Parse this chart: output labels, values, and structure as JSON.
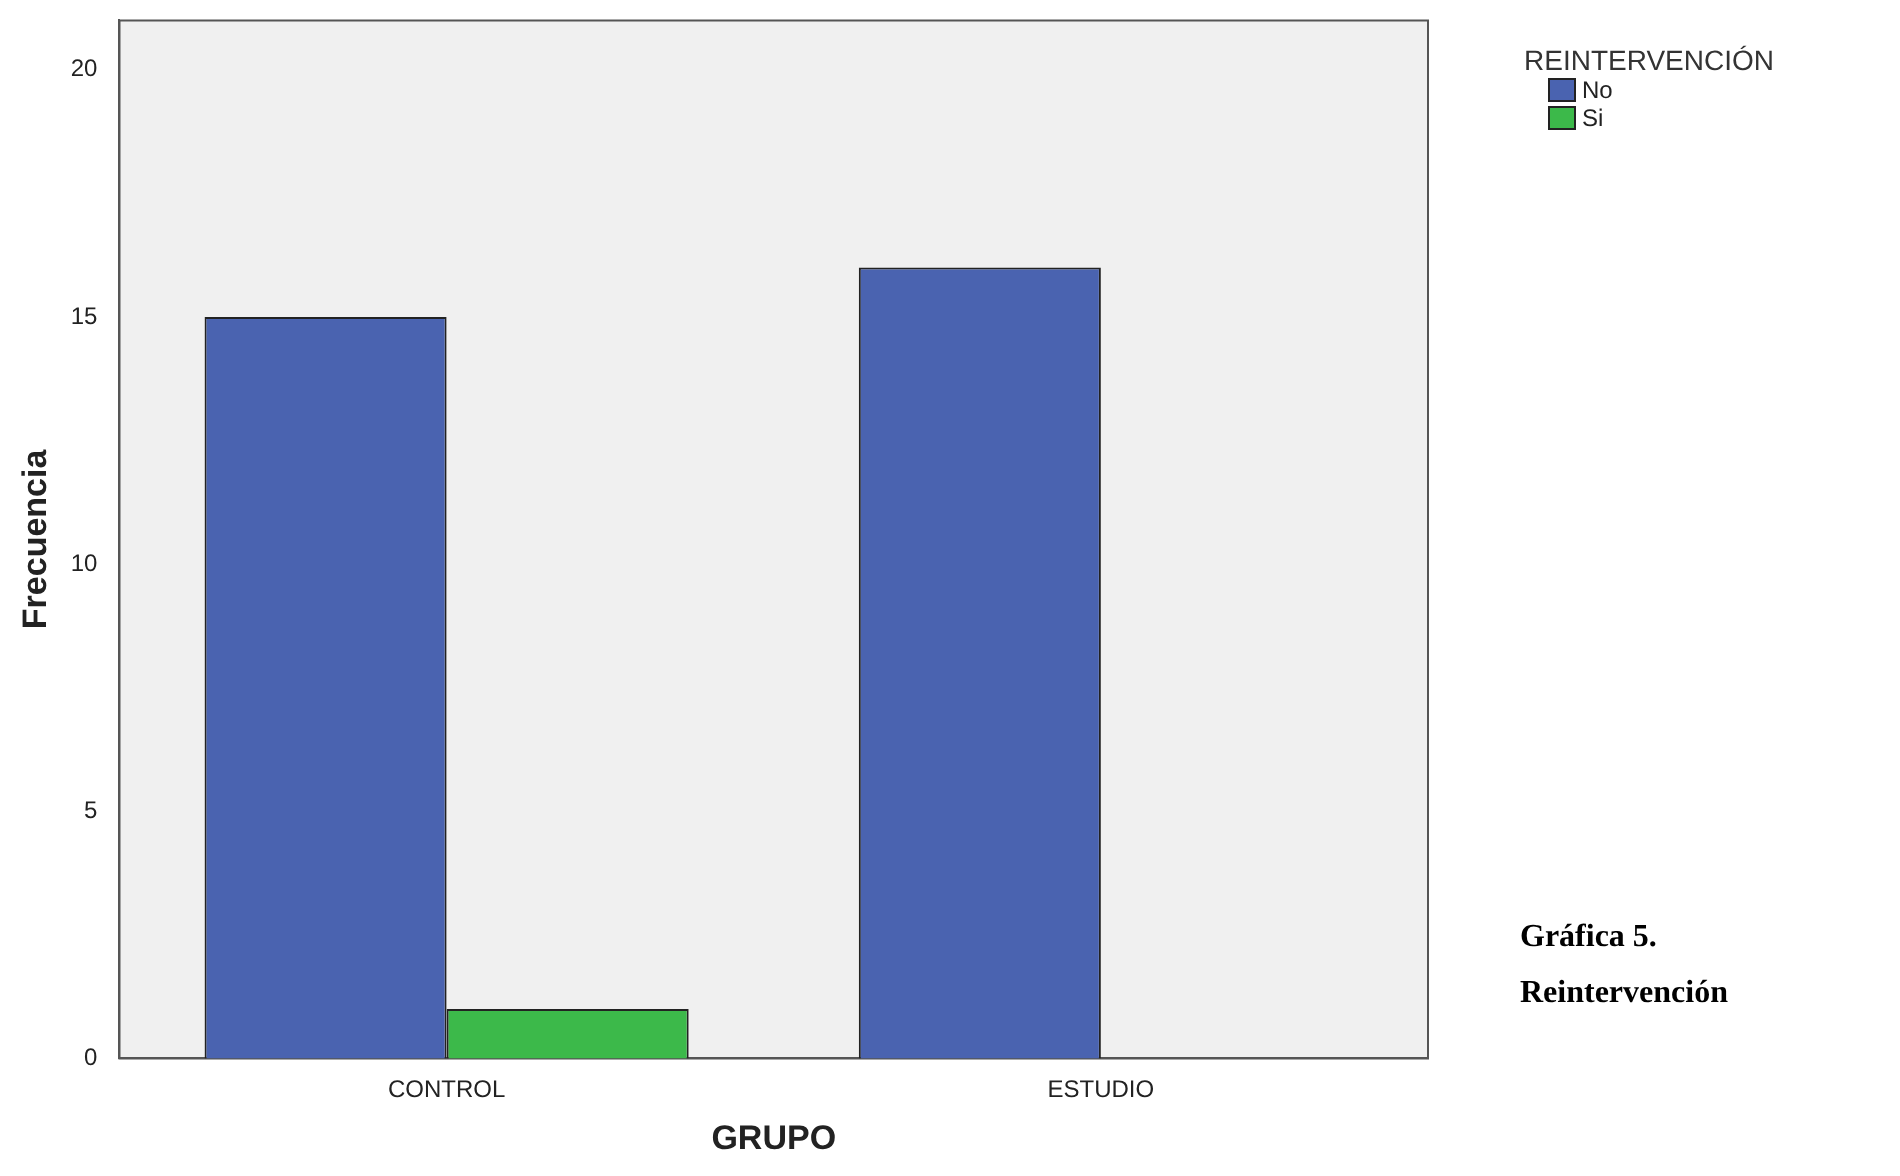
{
  "chart_data": {
    "type": "bar",
    "xlabel": "GRUPO",
    "ylabel": "Frecuencia",
    "legend_title": "REINTERVENCIÓN",
    "categories": [
      "CONTROL",
      "ESTUDIO"
    ],
    "series": [
      {
        "name": "No",
        "color": "#4a63b0",
        "values": [
          15,
          16
        ]
      },
      {
        "name": "Si",
        "color": "#3cb94a",
        "values": [
          1,
          0
        ]
      }
    ],
    "ylim": [
      0,
      21
    ],
    "yticks": [
      0,
      5,
      10,
      15,
      20
    ],
    "grid": false,
    "legend": "top right",
    "annotations": [
      "Gráfica 5. Reintervención"
    ]
  }
}
